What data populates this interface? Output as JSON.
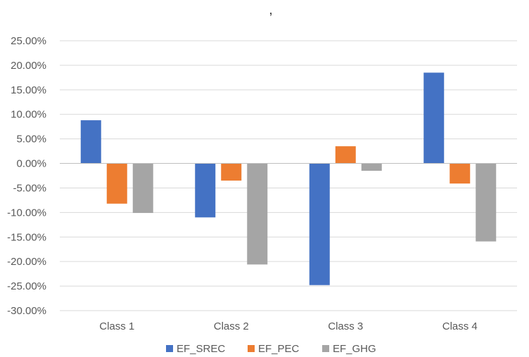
{
  "chart_data": {
    "type": "bar",
    "title": "’",
    "categories": [
      "Class 1",
      "Class 2",
      "Class 3",
      "Class 4"
    ],
    "series": [
      {
        "name": "EF_SREC",
        "color": "#4472C4",
        "values": [
          8.8,
          -11.0,
          -24.8,
          18.5
        ]
      },
      {
        "name": "EF_PEC",
        "color": "#ED7D31",
        "values": [
          -8.2,
          -3.5,
          3.5,
          -4.1
        ]
      },
      {
        "name": "EF_GHG",
        "color": "#A5A5A5",
        "values": [
          -10.1,
          -20.6,
          -1.5,
          -15.9
        ]
      }
    ],
    "ylim": [
      -30,
      25
    ],
    "yticks": [
      25,
      20,
      15,
      10,
      5,
      0,
      -5,
      -10,
      -15,
      -20,
      -25,
      -30
    ],
    "ytick_labels": [
      "25.00%",
      "20.00%",
      "15.00%",
      "10.00%",
      "5.00%",
      "0.00%",
      "-5.00%",
      "-10.00%",
      "-15.00%",
      "-20.00%",
      "-25.00%",
      "-30.00%"
    ],
    "grid": true,
    "legend_position": "bottom"
  }
}
